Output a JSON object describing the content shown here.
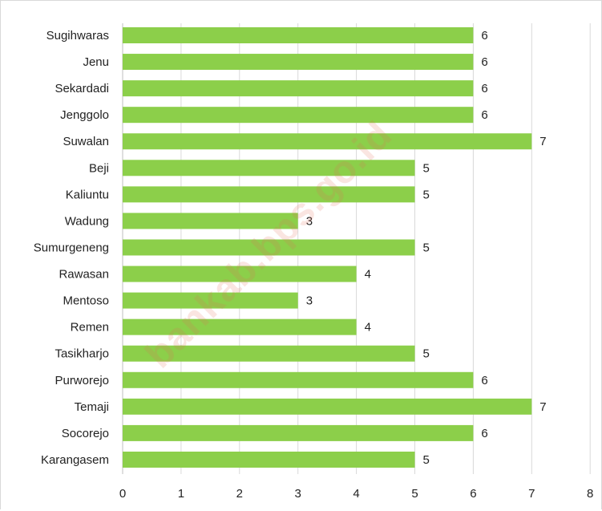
{
  "chart_data": {
    "type": "bar",
    "orientation": "horizontal",
    "categories": [
      "Sugihwaras",
      "Jenu",
      "Sekardadi",
      "Jenggolo",
      "Suwalan",
      "Beji",
      "Kaliuntu",
      "Wadung",
      "Sumurgeneng",
      "Rawasan",
      "Mentoso",
      "Remen",
      "Tasikharjo",
      "Purworejo",
      "Temaji",
      "Socorejo",
      "Karangasem"
    ],
    "values": [
      6,
      6,
      6,
      6,
      7,
      5,
      5,
      3,
      5,
      4,
      3,
      4,
      5,
      6,
      7,
      6,
      5
    ],
    "xlim": [
      0,
      8
    ],
    "x_ticks": [
      "0",
      "1",
      "2",
      "3",
      "4",
      "5",
      "6",
      "7",
      "8"
    ],
    "grid": true,
    "data_labels": true,
    "bar_color": "#8ccf4a",
    "title": "",
    "xlabel": "",
    "ylabel": ""
  },
  "watermark": "bankab.bps.go.id"
}
